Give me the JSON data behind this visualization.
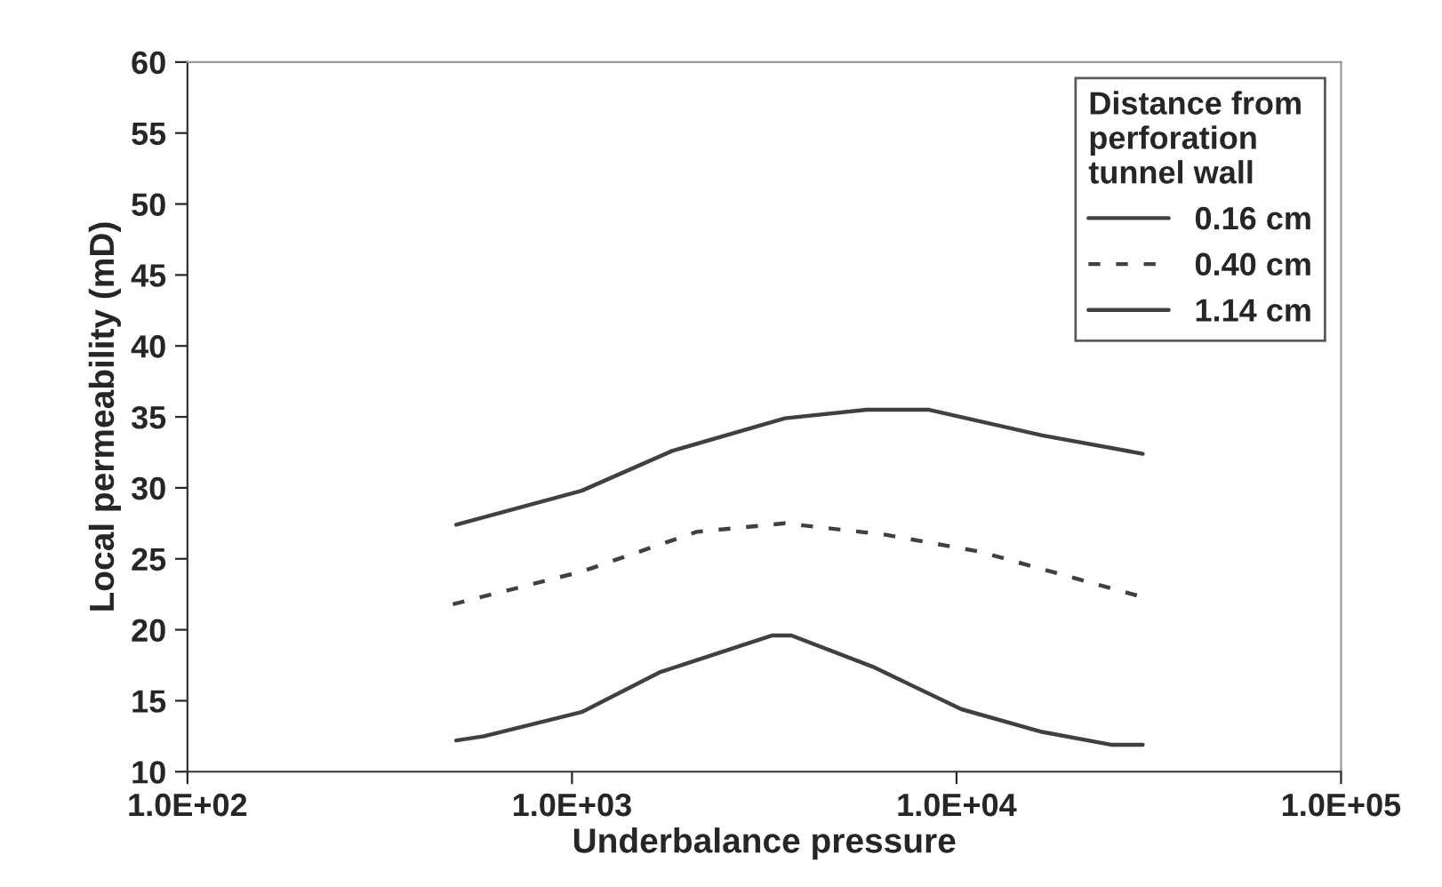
{
  "chart_data": {
    "type": "line",
    "xlabel": "Underbalance pressure",
    "ylabel": "Local permeability (mD)",
    "legend_title": "Distance from\nperforation\ntunnel wall",
    "legend": "top right",
    "log": "x",
    "grid": false,
    "marker": "none",
    "xlim": [
      100,
      100000
    ],
    "xticks": [
      {
        "value": 100,
        "label": "1.0E+02"
      },
      {
        "value": 1000,
        "label": "1.0E+03"
      },
      {
        "value": 10000,
        "label": "1.0E+04"
      },
      {
        "value": 100000,
        "label": "1.0E+05"
      }
    ],
    "ylim": [
      10,
      60
    ],
    "yticks": [
      10,
      15,
      20,
      25,
      30,
      35,
      40,
      45,
      50,
      55,
      60
    ],
    "series": [
      {
        "name": "0.16 cm",
        "color": "#404040",
        "line_style": "solid",
        "x": [
          500,
          1060,
          1820,
          3580,
          5840,
          8490,
          16700,
          30500
        ],
        "values": [
          27.4,
          29.8,
          32.6,
          34.9,
          35.5,
          35.5,
          33.7,
          32.4
        ]
      },
      {
        "name": "0.40 cm",
        "color": "#404040",
        "line_style": "dashed",
        "x": [
          490,
          1060,
          2110,
          3580,
          6530,
          11500,
          30500
        ],
        "values": [
          21.8,
          24.1,
          26.9,
          27.5,
          26.7,
          25.5,
          22.3
        ]
      },
      {
        "name": "1.14 cm",
        "color": "#404040",
        "line_style": "solid",
        "x": [
          500,
          590,
          1060,
          1690,
          3320,
          3720,
          6050,
          10300,
          16700,
          25200,
          30500
        ],
        "values": [
          12.2,
          12.5,
          14.2,
          17.0,
          19.6,
          19.6,
          17.4,
          14.4,
          12.8,
          11.9,
          11.9
        ]
      }
    ]
  }
}
